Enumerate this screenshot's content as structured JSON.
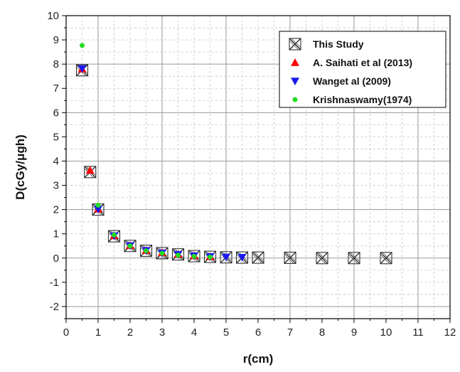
{
  "chart_data": {
    "type": "scatter",
    "xlabel": "r(cm)",
    "ylabel": "D(cGy/μgh)",
    "xlim": [
      0,
      12
    ],
    "ylim": [
      -2.5,
      10
    ],
    "xticks": [
      "0",
      "1",
      "2",
      "3",
      "4",
      "5",
      "6",
      "7",
      "8",
      "9",
      "10",
      "11",
      "12"
    ],
    "yticks": [
      "-2",
      "-1",
      "0",
      "1",
      "2",
      "3",
      "4",
      "5",
      "6",
      "7",
      "8",
      "9",
      "10"
    ],
    "grid": "major solid, minor dashed",
    "legend_position": "top-right",
    "series": [
      {
        "name": "This Study",
        "marker": "crossed-box",
        "color": "#222222",
        "x": [
          0.5,
          0.75,
          1,
          1.5,
          2,
          2.5,
          3,
          3.5,
          4,
          4.5,
          5,
          5.5,
          6,
          7,
          8,
          9,
          10
        ],
        "y": [
          7.75,
          3.55,
          2.0,
          0.9,
          0.5,
          0.3,
          0.2,
          0.15,
          0.08,
          0.05,
          0.03,
          0.02,
          0.02,
          0.01,
          0.0,
          0.0,
          0.0
        ]
      },
      {
        "name": "A. Saihati et al (2013)",
        "marker": "triangle-up",
        "color": "#ff0000",
        "x": [
          0.5,
          0.75,
          1,
          1.5,
          2,
          2.5,
          3,
          3.5,
          4,
          4.5
        ],
        "y": [
          7.8,
          3.62,
          2.02,
          0.92,
          0.52,
          0.32,
          0.22,
          0.16,
          0.1,
          0.06
        ]
      },
      {
        "name": "Wanget al (2009)",
        "marker": "triangle-down",
        "color": "#1a1aee",
        "x": [
          0.5,
          1,
          1.5,
          2,
          2.5,
          3,
          3.5,
          4,
          4.5,
          5,
          5.5
        ],
        "y": [
          7.82,
          2.02,
          0.92,
          0.51,
          0.31,
          0.21,
          0.15,
          0.09,
          0.06,
          0.04,
          0.03
        ]
      },
      {
        "name": "Krishnaswamy(1974)",
        "marker": "circle",
        "color": "#22dd22",
        "x": [
          0.5,
          1,
          1.5,
          2,
          2.5,
          3,
          3.5,
          4,
          4.5
        ],
        "y": [
          8.77,
          2.18,
          0.95,
          0.5,
          0.3,
          0.2,
          0.12,
          0.07,
          0.04
        ]
      }
    ]
  }
}
